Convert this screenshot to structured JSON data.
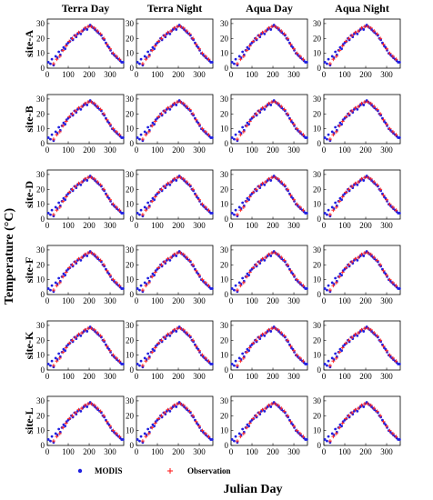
{
  "xlabel": "Julian Day",
  "ylabel": "Temperature (°C)",
  "legend": [
    {
      "label": "MODIS",
      "color": "#1f1fe0",
      "marker": "dot"
    },
    {
      "label": "Observation",
      "color": "#ff2020",
      "marker": "plus"
    }
  ],
  "chart_data": {
    "type": "scatter",
    "title": "",
    "columns": [
      "Terra Day",
      "Terra Night",
      "Aqua Day",
      "Aqua Night"
    ],
    "rows": [
      "site-A",
      "site-B",
      "site-D",
      "site-F",
      "site-K",
      "site-L"
    ],
    "xlim": [
      0,
      365
    ],
    "ylim": [
      0,
      33
    ],
    "xticks": [
      0,
      100,
      200,
      300
    ],
    "yticks": [
      0,
      10,
      20,
      30
    ],
    "grid": false,
    "legend_position": "bottom",
    "series": [
      {
        "name": "MODIS",
        "color": "#1f1fe0",
        "x": [
          5,
          15,
          22,
          30,
          40,
          48,
          55,
          62,
          70,
          78,
          85,
          92,
          100,
          108,
          115,
          122,
          130,
          138,
          145,
          152,
          160,
          168,
          175,
          182,
          190,
          198,
          205,
          212,
          220,
          228,
          235,
          242,
          250,
          258,
          265,
          272,
          280,
          288,
          295,
          302,
          310,
          318,
          325,
          332,
          340,
          348,
          355,
          362
        ],
        "y": [
          4,
          3,
          6,
          2,
          8,
          7,
          11,
          9,
          12,
          14,
          13,
          16,
          17,
          18,
          20,
          19,
          22,
          21,
          23,
          24,
          23,
          25,
          26,
          27,
          26,
          28,
          29,
          28,
          27,
          26,
          25,
          24,
          23,
          22,
          20,
          19,
          17,
          15,
          14,
          12,
          10,
          9,
          8,
          7,
          6,
          5,
          4,
          4
        ]
      },
      {
        "name": "Observation",
        "color": "#ff2020",
        "x": [
          30,
          45,
          60,
          75,
          90,
          105,
          120,
          135,
          150,
          165,
          180,
          195,
          210,
          225,
          240,
          255,
          270,
          285,
          300,
          315,
          330,
          345
        ],
        "y": [
          3,
          6,
          8,
          12,
          15,
          18,
          20,
          22,
          24,
          25,
          27,
          28,
          28,
          27,
          25,
          23,
          20,
          16,
          13,
          10,
          8,
          6
        ]
      }
    ]
  }
}
